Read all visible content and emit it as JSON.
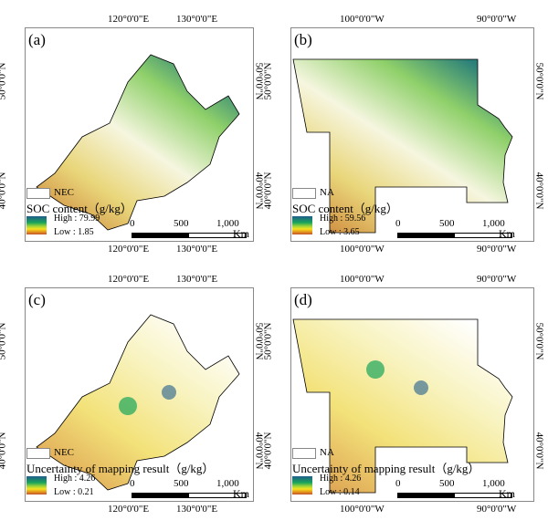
{
  "panels": [
    {
      "id": "(a)",
      "top_left": "120°0'0\"E",
      "top_right": "130°0'0\"E",
      "left_top": "50°0'0\"N",
      "left_bottom": "40°0'0\"N",
      "legend_region": "NEC",
      "title": "SOC content（g/kg）",
      "high": "High : 79.99",
      "low": "Low : 1.85",
      "scale": [
        "0",
        "500",
        "1,000"
      ],
      "unit": "Km"
    },
    {
      "id": "(b)",
      "top_left": "100°0'0\"W",
      "top_right": "90°0'0\"W",
      "left_top": "50°0'0\"N",
      "left_bottom": "40°0'0\"N",
      "legend_region": "NA",
      "title": "SOC content（g/kg）",
      "high": "High : 59.56",
      "low": "Low : 3.65",
      "scale": [
        "0",
        "500",
        "1,000"
      ],
      "unit": "Km"
    },
    {
      "id": "(c)",
      "top_left": "120°0'0\"E",
      "top_right": "130°0'0\"E",
      "left_top": "50°0'0\"N",
      "left_bottom": "40°0'0\"N",
      "legend_region": "NEC",
      "title": "Uncertainty of mapping result（g/kg）",
      "high": "High : 4.26",
      "low": "Low : 0.21",
      "scale": [
        "0",
        "500",
        "1,000"
      ],
      "unit": "Km"
    },
    {
      "id": "(d)",
      "top_left": "100°0'0\"W",
      "top_right": "90°0'0\"W",
      "left_top": "50°0'0\"N",
      "left_bottom": "40°0'0\"N",
      "legend_region": "NA",
      "title": "Uncertainty of mapping result（g/kg）",
      "high": "High : 4.26",
      "low": "Low : 0.14",
      "scale": [
        "0",
        "500",
        "1,000"
      ],
      "unit": "Km"
    }
  ],
  "colors": {
    "high": "#1f5d8c",
    "mid": "#9fd33a",
    "low": "#c0552a"
  }
}
